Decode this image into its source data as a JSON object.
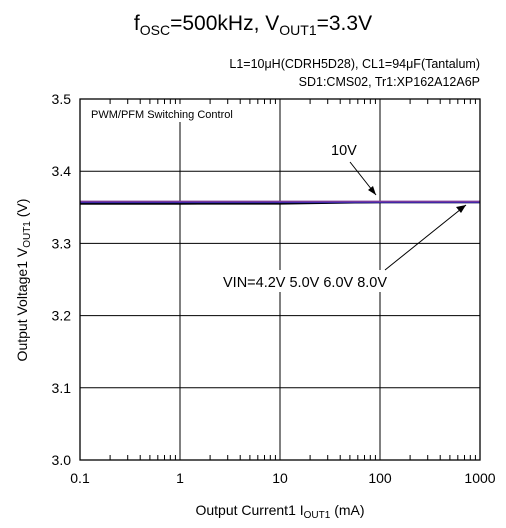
{
  "chart_data": {
    "type": "line",
    "title_parts": [
      "f",
      "OSC",
      "=500kHz, V",
      "OUT1",
      "=3.3V"
    ],
    "conditions": [
      "L1=10μH(CDRH5D28), CL1=94μF(Tantalum)",
      "SD1:CMS02, Tr1:XP162A12A6P"
    ],
    "mode_label": "PWM/PFM Switching Control",
    "xlabel_parts": [
      "Output Current1  I",
      "OUT1",
      " (mA)"
    ],
    "ylabel_parts": [
      "Output Voltage1  V",
      "OUT1",
      " (V)"
    ],
    "xscale": "log",
    "xlim": [
      0.1,
      1000
    ],
    "ylim": [
      3.0,
      3.5
    ],
    "x_ticks": [
      0.1,
      1,
      10,
      100,
      1000
    ],
    "x_tick_labels": [
      "0.1",
      "1",
      "10",
      "100",
      "1000"
    ],
    "y_ticks": [
      3.0,
      3.1,
      3.2,
      3.3,
      3.4,
      3.5
    ],
    "y_tick_labels": [
      "3.0",
      "3.1",
      "3.2",
      "3.3",
      "3.4",
      "3.5"
    ],
    "grid": true,
    "series": [
      {
        "name": "VIN=4.2V",
        "color": "#000000",
        "x": [
          0.1,
          1,
          10,
          100,
          1000
        ],
        "y": [
          3.356,
          3.356,
          3.356,
          3.357,
          3.357
        ]
      },
      {
        "name": "5.0V",
        "color": "#000000",
        "x": [
          0.1,
          1,
          10,
          100,
          1000
        ],
        "y": [
          3.355,
          3.355,
          3.356,
          3.357,
          3.357
        ]
      },
      {
        "name": "6.0V",
        "color": "#000000",
        "x": [
          0.1,
          1,
          10,
          100,
          1000
        ],
        "y": [
          3.355,
          3.355,
          3.355,
          3.357,
          3.357
        ]
      },
      {
        "name": "8.0V",
        "color": "#1f1fb0",
        "x": [
          0.1,
          1,
          10,
          100,
          1000
        ],
        "y": [
          3.357,
          3.357,
          3.357,
          3.357,
          3.357
        ]
      },
      {
        "name": "10V",
        "color": "#7a3a9a",
        "x": [
          0.1,
          1,
          10,
          100,
          1000
        ],
        "y": [
          3.358,
          3.358,
          3.358,
          3.358,
          3.358
        ]
      }
    ],
    "annotations": [
      {
        "text": "10V",
        "point": [
          100,
          3.357
        ]
      },
      {
        "text": "VIN=4.2V 5.0V 6.0V 8.0V",
        "point": [
          1000,
          3.357
        ]
      }
    ]
  }
}
